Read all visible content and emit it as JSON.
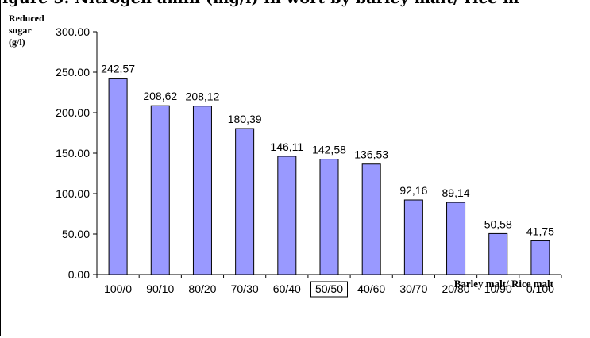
{
  "figure_title": "igure 5. Nitrogen amin (mg/l) in wort by barley malt/ rice m",
  "chart_data": {
    "type": "bar",
    "title": "",
    "ylabel_lines": [
      "Reduced",
      "sugar",
      "(g/l)"
    ],
    "xlabel": "Barley malt/ Rice malt",
    "categories": [
      "100/0",
      "90/10",
      "80/20",
      "70/30",
      "60/40",
      "50/50",
      "40/60",
      "30/70",
      "20/80",
      "10/90",
      "0/100"
    ],
    "values": [
      242.57,
      208.62,
      208.12,
      180.39,
      146.11,
      142.58,
      136.53,
      92.16,
      89.14,
      50.58,
      41.75
    ],
    "data_labels": [
      "242,57",
      "208,62",
      "208,12",
      "180,39",
      "146,11",
      "142,58",
      "136,53",
      "92,16",
      "89,14",
      "50,58",
      "41,75"
    ],
    "ylim": [
      0,
      300
    ],
    "yticks": [
      "0.00",
      "50.00",
      "100.00",
      "150.00",
      "200.00",
      "250.00",
      "300.00"
    ],
    "highlighted_category": "50/50",
    "bar_color": "#9999ff",
    "grid": false,
    "legend": "none"
  }
}
